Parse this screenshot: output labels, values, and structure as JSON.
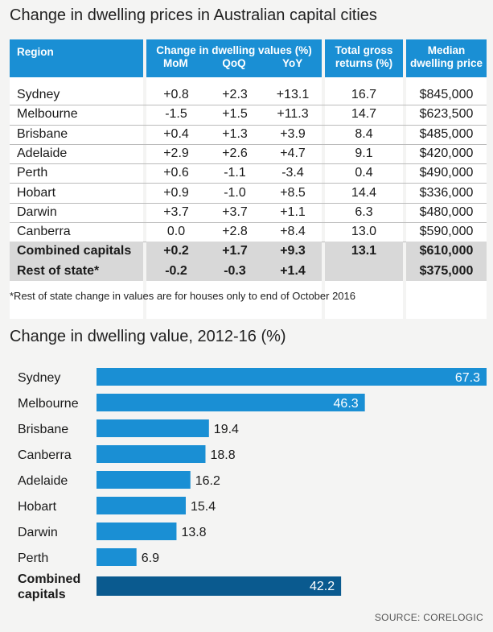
{
  "table": {
    "title": "Change in dwelling prices in Australian capital cities",
    "headers": {
      "region": "Region",
      "change": "Change in dwelling values (%)",
      "mom": "MoM",
      "qoq": "QoQ",
      "yoy": "YoY",
      "total_1": "Total gross",
      "total_2": "returns (%)",
      "median_1": "Median",
      "median_2": "dwelling price"
    },
    "rows": [
      {
        "region": "Sydney",
        "mom": "+0.8",
        "qoq": "+2.3",
        "yoy": "+13.1",
        "total": "16.7",
        "median": "$845,000"
      },
      {
        "region": "Melbourne",
        "mom": "-1.5",
        "qoq": "+1.5",
        "yoy": "+11.3",
        "total": "14.7",
        "median": "$623,500"
      },
      {
        "region": "Brisbane",
        "mom": "+0.4",
        "qoq": "+1.3",
        "yoy": "+3.9",
        "total": "8.4",
        "median": "$485,000"
      },
      {
        "region": "Adelaide",
        "mom": "+2.9",
        "qoq": "+2.6",
        "yoy": "+4.7",
        "total": "9.1",
        "median": "$420,000"
      },
      {
        "region": "Perth",
        "mom": "+0.6",
        "qoq": "-1.1",
        "yoy": "-3.4",
        "total": "0.4",
        "median": "$490,000"
      },
      {
        "region": "Hobart",
        "mom": "+0.9",
        "qoq": "-1.0",
        "yoy": "+8.5",
        "total": "14.4",
        "median": "$336,000"
      },
      {
        "region": "Darwin",
        "mom": "+3.7",
        "qoq": "+3.7",
        "yoy": "+1.1",
        "total": "6.3",
        "median": "$480,000"
      },
      {
        "region": "Canberra",
        "mom": "0.0",
        "qoq": "+2.8",
        "yoy": "+8.4",
        "total": "13.0",
        "median": "$590,000"
      },
      {
        "region": "Combined capitals",
        "mom": "+0.2",
        "qoq": "+1.7",
        "yoy": "+9.3",
        "total": "13.1",
        "median": "$610,000"
      },
      {
        "region": "Rest of state*",
        "mom": "-0.2",
        "qoq": "-0.3",
        "yoy": "+1.4",
        "total": "",
        "median": "$375,000"
      }
    ],
    "footnote": "*Rest of state change in values are for houses only to end of October 2016"
  },
  "chart_data": {
    "type": "bar",
    "orientation": "horizontal",
    "title": "Change in dwelling value, 2012-16 (%)",
    "categories": [
      "Sydney",
      "Melbourne",
      "Brisbane",
      "Canberra",
      "Adelaide",
      "Hobart",
      "Darwin",
      "Perth",
      "Combined capitals"
    ],
    "values": [
      67.3,
      46.3,
      19.4,
      18.8,
      16.2,
      15.4,
      13.8,
      6.9,
      42.2
    ],
    "highlight": "Combined capitals",
    "colors": {
      "bar": "#1a8fd4",
      "highlight": "#0a5a8f",
      "label_inside": "#ffffff",
      "label_outside": "#1a1a1a"
    },
    "xlim": [
      0,
      67.3
    ],
    "grid": false,
    "legend": "none"
  },
  "source": "SOURCE: CORELOGIC",
  "colors": {
    "header": "#1a8fd4",
    "shade": "#d8d8d8",
    "background": "#f4f4f3"
  }
}
